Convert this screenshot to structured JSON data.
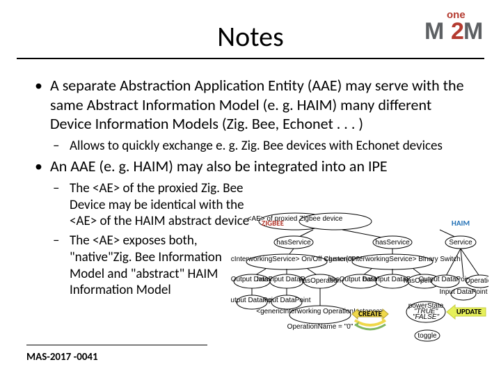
{
  "logo": {
    "one_text": "one",
    "one_color": "#b43a2f",
    "m_color": "#5d6063",
    "two_color": "#b43a2f"
  },
  "title": "Notes",
  "bullets": [
    {
      "text": "A separate Abstraction Application Entity (AAE) may serve with the same Abstract Information Model (e. g. HAIM) many different Device Information Models (Zig. Bee, Echonet . . . )",
      "subs": [
        {
          "text": "Allows to quickly exchange e. g. Zig. Bee devices with Echonet devices",
          "narrow": false
        }
      ]
    },
    {
      "text": "An AAE (e. g. HAIM) may also be integrated into an IPE",
      "subs": [
        {
          "text": "The <AE> of the proxied Zig. Bee Device may be identical with the <AE> of the HAIM abstract device",
          "narrow": true
        },
        {
          "text": "The <AE> exposes both, \"native\"Zig. Bee Information Model and \"abstract\" HAIM  Information Model",
          "narrow": true
        }
      ]
    }
  ],
  "footer_id": "MAS-2017 -0041",
  "diagram": {
    "zigbee_label": "ZIGBEE",
    "haim_label": "HAIM",
    "top_left": "<AE> of proxied Zigbee device",
    "has_service": "hasService",
    "generic_iw": "<genericInterworkingService> On/Off Cluster(0006)",
    "generic_iw2": "<genericInterworkingService> Binary Switch",
    "service": "Service",
    "has_output": "hasOutput DataPoint",
    "has_input": "hasInput DataPoint",
    "has_op": "hasOperation",
    "output_dp": "Output DataPoint",
    "input_dp": "Input DataPoint",
    "operation": "Operation",
    "generic_op": "<genericInterworking OperationInstance>",
    "op_name": "OperationName = \"0\"",
    "power_state": "powerState \"TRUE\" \"FALSE\"",
    "create": "CREATE",
    "update": "UPDATE",
    "toggle": "toggle",
    "colors": {
      "edge": "#000000",
      "ellipse_fill": "#ffffff",
      "ellipse_stroke": "#000000",
      "arrow_yellow": "#efd84a",
      "arrow_green": "#7fb55f"
    }
  }
}
